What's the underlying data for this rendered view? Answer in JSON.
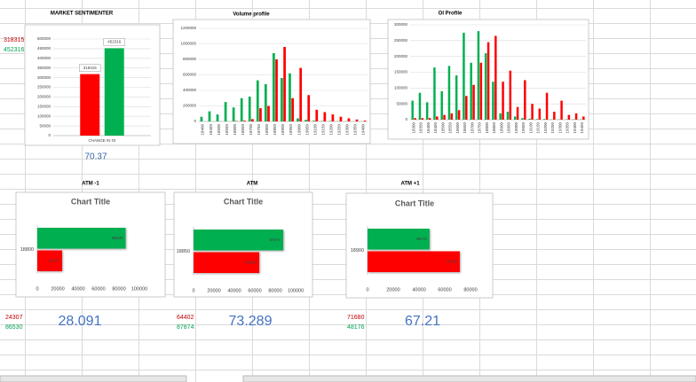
{
  "chart_data": [
    {
      "type": "bar",
      "title": "MARKET SENTIMENTER",
      "categories": [
        "CHANGE IN OI"
      ],
      "series": [
        {
          "color": "#ff0000",
          "values": [
            318315
          ]
        },
        {
          "color": "#00b050",
          "values": [
            452316
          ]
        }
      ],
      "ylim": [
        0,
        500000
      ],
      "yticks": [
        0,
        50000,
        100000,
        150000,
        200000,
        250000,
        300000,
        350000,
        400000,
        450000,
        500000
      ],
      "grid": true,
      "data_labels": true
    },
    {
      "type": "bar",
      "title": "Volume profile",
      "categories": [
        "18400",
        "18450",
        "18500",
        "18550",
        "18600",
        "18650",
        "18700",
        "18750",
        "18800",
        "18850",
        "18900",
        "18950",
        "19000",
        "19050",
        "19100",
        "19150",
        "19200",
        "19250",
        "19300",
        "19350",
        "19400"
      ],
      "series": [
        {
          "color": "#00b050",
          "values": [
            60000,
            130000,
            90000,
            250000,
            180000,
            300000,
            320000,
            530000,
            480000,
            880000,
            560000,
            620000,
            40000,
            20000,
            10000,
            5000,
            5000,
            3000,
            2000,
            1000,
            1000
          ]
        },
        {
          "color": "#ff0000",
          "values": [
            0,
            0,
            0,
            0,
            5000,
            10000,
            30000,
            170000,
            200000,
            800000,
            960000,
            300000,
            690000,
            340000,
            150000,
            120000,
            90000,
            60000,
            40000,
            25000,
            10000
          ]
        }
      ],
      "ylim": [
        0,
        1200000
      ],
      "yticks": [
        0,
        200000,
        400000,
        600000,
        800000,
        1000000,
        1200000
      ],
      "grid": true,
      "data_labels": false
    },
    {
      "type": "bar",
      "title": "OI Profile",
      "categories": [
        "18300",
        "18350",
        "18400",
        "18450",
        "18500",
        "18550",
        "18600",
        "18650",
        "18700",
        "18750",
        "18800",
        "18850",
        "18900",
        "18950",
        "19000",
        "19050",
        "19100",
        "19150",
        "19200",
        "19250",
        "19300",
        "19350",
        "19400",
        "19450"
      ],
      "series": [
        {
          "color": "#00b050",
          "values": [
            60000,
            85000,
            55000,
            165000,
            90000,
            170000,
            140000,
            275000,
            180000,
            280000,
            210000,
            120000,
            20000,
            25000,
            10000,
            5000,
            3000,
            2000,
            2000,
            1000,
            1000,
            1000,
            1000,
            1000
          ]
        },
        {
          "color": "#ff0000",
          "values": [
            5000,
            5000,
            5000,
            10000,
            15000,
            20000,
            30000,
            75000,
            110000,
            180000,
            245000,
            265000,
            120000,
            155000,
            40000,
            125000,
            50000,
            35000,
            85000,
            25000,
            60000,
            15000,
            20000,
            10000
          ]
        }
      ],
      "ylim": [
        0,
        300000
      ],
      "yticks": [
        0,
        50000,
        100000,
        150000,
        200000,
        250000,
        300000
      ],
      "grid": true,
      "data_labels": false
    },
    {
      "type": "barh",
      "heading": "ATM -1",
      "title": "Chart Title",
      "categories": [
        "18800"
      ],
      "series": [
        {
          "color": "#00b050",
          "values": [
            86530
          ]
        },
        {
          "color": "#ff0000",
          "values": [
            24307
          ]
        }
      ],
      "xlim": [
        0,
        100000
      ],
      "xticks": [
        0,
        20000,
        40000,
        60000,
        80000,
        100000
      ],
      "grid": false,
      "data_labels": true
    },
    {
      "type": "barh",
      "heading": "ATM",
      "title": "Chart Title",
      "categories": [
        "18850"
      ],
      "series": [
        {
          "color": "#00b050",
          "values": [
            87874
          ]
        },
        {
          "color": "#ff0000",
          "values": [
            64402
          ]
        }
      ],
      "xlim": [
        0,
        100000
      ],
      "xticks": [
        0,
        20000,
        40000,
        60000,
        80000,
        100000
      ],
      "grid": false,
      "data_labels": true
    },
    {
      "type": "barh",
      "heading": "ATM +1",
      "title": "Chart Title",
      "categories": [
        "18900"
      ],
      "series": [
        {
          "color": "#00b050",
          "values": [
            48176
          ]
        },
        {
          "color": "#ff0000",
          "values": [
            71680
          ]
        }
      ],
      "xlim": [
        0,
        80000
      ],
      "xticks": [
        0,
        20000,
        40000,
        60000,
        80000
      ],
      "grid": false,
      "data_labels": true
    }
  ],
  "cells": {
    "sentiment": {
      "red": 318315,
      "green": 452316,
      "ratio": 70.37
    },
    "atm_minus_1": {
      "red": 24307,
      "green": 86530,
      "ratio": 28.091
    },
    "atm": {
      "red": 64402,
      "green": 87874,
      "ratio": 73.289
    },
    "atm_plus_1": {
      "red": 71680,
      "green": 48176,
      "ratio": 67.21
    }
  }
}
